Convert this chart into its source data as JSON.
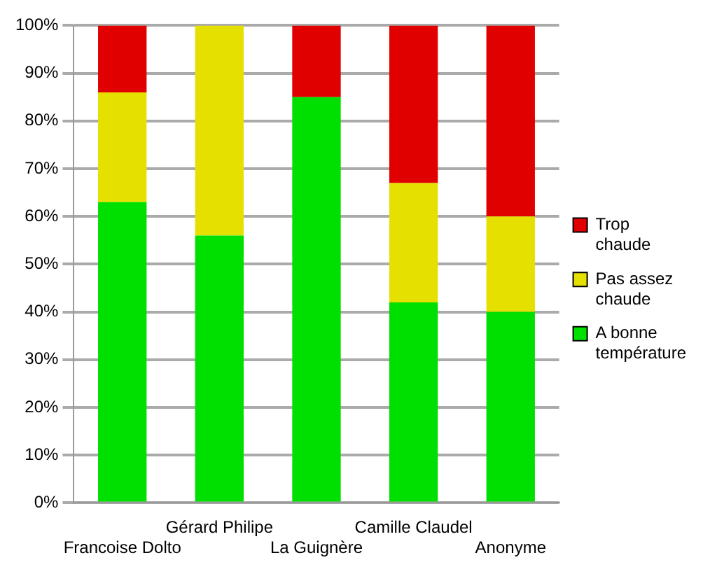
{
  "chart_data": {
    "type": "bar",
    "stacked": true,
    "categories": [
      "Francoise Dolto",
      "Gérard Philipe",
      "La Guignère",
      "Camille Claudel",
      "Anonyme"
    ],
    "series": [
      {
        "name": "A bonne température",
        "color": "#00e000",
        "values": [
          63,
          56,
          85,
          42,
          40
        ]
      },
      {
        "name": "Pas assez chaude",
        "color": "#e6e000",
        "values": [
          23,
          44,
          0,
          25,
          20
        ]
      },
      {
        "name": "Trop chaude",
        "color": "#e00000",
        "values": [
          14,
          0,
          15,
          33,
          40
        ]
      }
    ],
    "ylim": [
      0,
      100
    ],
    "yticks": [
      {
        "value": 0,
        "label": "0%"
      },
      {
        "value": 10,
        "label": "10%"
      },
      {
        "value": 20,
        "label": "20%"
      },
      {
        "value": 30,
        "label": "30%"
      },
      {
        "value": 40,
        "label": "40%"
      },
      {
        "value": 50,
        "label": "50%"
      },
      {
        "value": 60,
        "label": "60%"
      },
      {
        "value": 70,
        "label": "70%"
      },
      {
        "value": 80,
        "label": "80%"
      },
      {
        "value": 90,
        "label": "90%"
      },
      {
        "value": 100,
        "label": "100%"
      }
    ],
    "grid": "y",
    "legend": "right"
  }
}
